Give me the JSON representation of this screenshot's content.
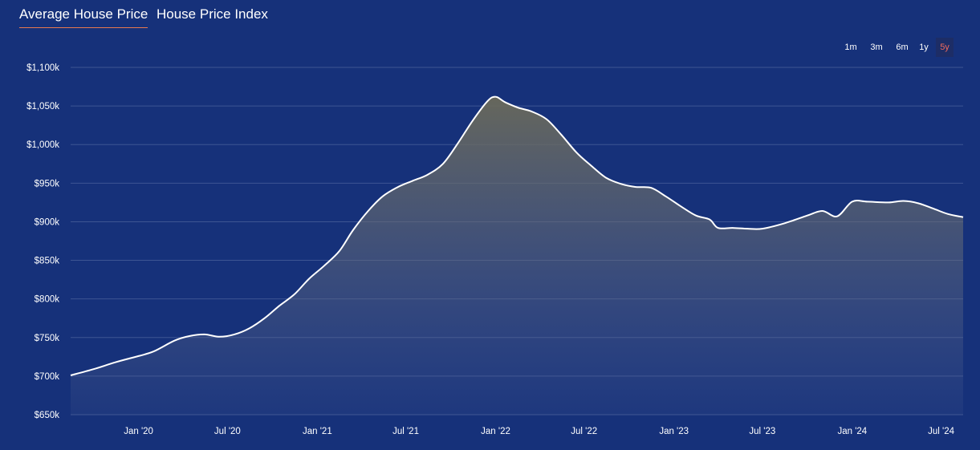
{
  "tabs": [
    {
      "label": "Average House Price",
      "active": true
    },
    {
      "label": "House Price Index",
      "active": false
    }
  ],
  "ranges": [
    {
      "label": "1m",
      "active": false
    },
    {
      "label": "3m",
      "active": false
    },
    {
      "label": "6m",
      "active": false
    },
    {
      "label": "1y",
      "active": false
    },
    {
      "label": "5y",
      "active": true
    }
  ],
  "colors": {
    "background": "#16317a",
    "gridline": "#3d5593",
    "line": "#ffffff",
    "active_tab_underline": "#e8794f",
    "active_range_text": "#f06a5d"
  },
  "chart_data": {
    "type": "area",
    "title": "",
    "xlabel": "",
    "ylabel": "",
    "ylim": [
      650,
      1100
    ],
    "yticks": [
      650,
      700,
      750,
      800,
      850,
      900,
      950,
      1000,
      1050,
      1100
    ],
    "ytick_labels": [
      "$650k",
      "$700k",
      "$750k",
      "$800k",
      "$850k",
      "$900k",
      "$950k",
      "$1,000k",
      "$1,050k",
      "$1,100k"
    ],
    "xlim": [
      "2019-08-15",
      "2024-08-15"
    ],
    "xticks": [
      "2020-01-01",
      "2020-07-01",
      "2021-01-01",
      "2021-07-01",
      "2022-01-01",
      "2022-07-01",
      "2023-01-01",
      "2023-07-01",
      "2024-01-01",
      "2024-07-01"
    ],
    "xtick_labels": [
      "Jan '20",
      "Jul '20",
      "Jan '21",
      "Jul '21",
      "Jan '22",
      "Jul '22",
      "Jan '23",
      "Jul '23",
      "Jan '24",
      "Jul '24"
    ],
    "grid": true,
    "series": [
      {
        "name": "",
        "points": [
          [
            "2019-08-15",
            701
          ],
          [
            "2019-10-01",
            709
          ],
          [
            "2019-11-15",
            718
          ],
          [
            "2020-01-01",
            726
          ],
          [
            "2020-02-01",
            732
          ],
          [
            "2020-03-15",
            746
          ],
          [
            "2020-04-15",
            752
          ],
          [
            "2020-05-15",
            754
          ],
          [
            "2020-06-15",
            751
          ],
          [
            "2020-07-15",
            754
          ],
          [
            "2020-08-15",
            762
          ],
          [
            "2020-09-15",
            775
          ],
          [
            "2020-10-15",
            791
          ],
          [
            "2020-11-15",
            806
          ],
          [
            "2020-12-15",
            826
          ],
          [
            "2021-01-15",
            843
          ],
          [
            "2021-02-15",
            862
          ],
          [
            "2021-03-15",
            889
          ],
          [
            "2021-04-15",
            914
          ],
          [
            "2021-05-15",
            933
          ],
          [
            "2021-06-15",
            945
          ],
          [
            "2021-07-15",
            953
          ],
          [
            "2021-08-15",
            961
          ],
          [
            "2021-09-15",
            975
          ],
          [
            "2021-10-15",
            1001
          ],
          [
            "2021-11-15",
            1031
          ],
          [
            "2021-12-15",
            1056
          ],
          [
            "2022-01-01",
            1062
          ],
          [
            "2022-01-20",
            1055
          ],
          [
            "2022-02-15",
            1048
          ],
          [
            "2022-03-15",
            1043
          ],
          [
            "2022-04-15",
            1033
          ],
          [
            "2022-05-15",
            1013
          ],
          [
            "2022-06-15",
            990
          ],
          [
            "2022-07-15",
            973
          ],
          [
            "2022-08-15",
            957
          ],
          [
            "2022-09-15",
            949
          ],
          [
            "2022-10-15",
            945
          ],
          [
            "2022-11-15",
            944
          ],
          [
            "2022-12-15",
            933
          ],
          [
            "2023-01-15",
            920
          ],
          [
            "2023-02-15",
            908
          ],
          [
            "2023-03-15",
            903
          ],
          [
            "2023-04-01",
            892
          ],
          [
            "2023-05-01",
            892
          ],
          [
            "2023-06-01",
            891
          ],
          [
            "2023-07-01",
            891
          ],
          [
            "2023-08-15",
            898
          ],
          [
            "2023-10-01",
            908
          ],
          [
            "2023-11-01",
            914
          ],
          [
            "2023-12-01",
            907
          ],
          [
            "2024-01-01",
            926
          ],
          [
            "2024-02-01",
            926
          ],
          [
            "2024-03-15",
            925
          ],
          [
            "2024-04-15",
            927
          ],
          [
            "2024-05-15",
            924
          ],
          [
            "2024-06-15",
            917
          ],
          [
            "2024-07-15",
            910
          ],
          [
            "2024-08-15",
            906
          ]
        ]
      }
    ]
  }
}
